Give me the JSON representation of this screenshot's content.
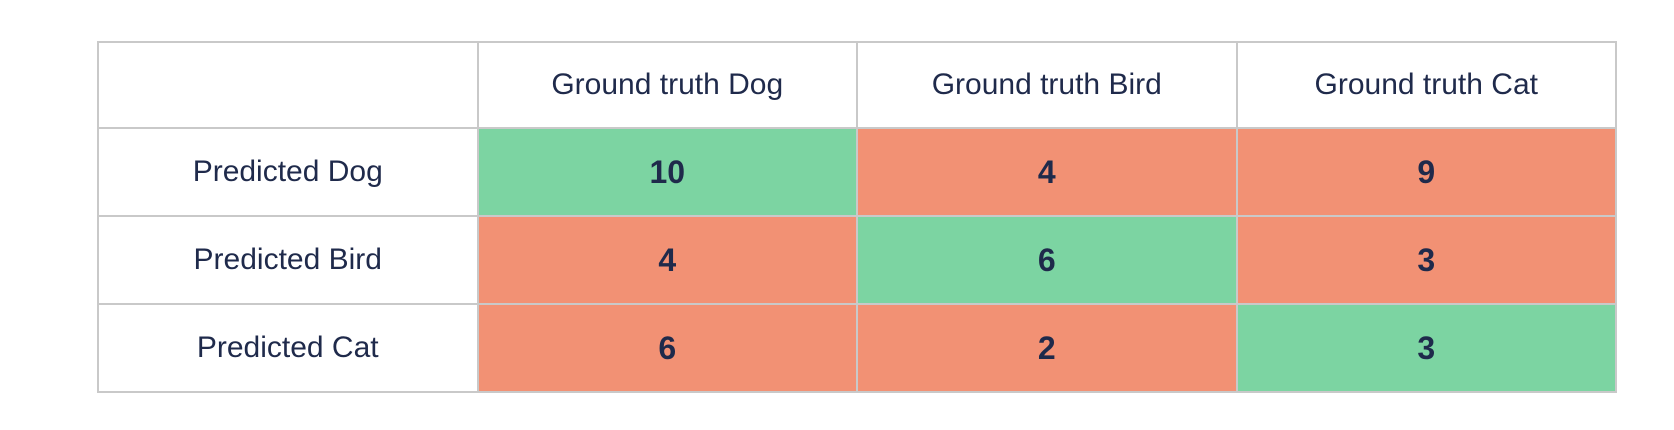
{
  "table": {
    "corner_label": "",
    "column_headers": [
      "Ground truth Dog",
      "Ground truth Bird",
      "Ground truth Cat"
    ],
    "rows": [
      {
        "label": "Predicted Dog",
        "cells": [
          {
            "value": "10",
            "state": "match"
          },
          {
            "value": "4",
            "state": "mismatch"
          },
          {
            "value": "9",
            "state": "mismatch"
          }
        ]
      },
      {
        "label": "Predicted Bird",
        "cells": [
          {
            "value": "4",
            "state": "mismatch"
          },
          {
            "value": "6",
            "state": "match"
          },
          {
            "value": "3",
            "state": "mismatch"
          }
        ]
      },
      {
        "label": "Predicted Cat",
        "cells": [
          {
            "value": "6",
            "state": "mismatch"
          },
          {
            "value": "2",
            "state": "mismatch"
          },
          {
            "value": "3",
            "state": "match"
          }
        ]
      }
    ],
    "colors": {
      "match": "#7CD4A2",
      "mismatch": "#F29174",
      "text": "#1F2A4B",
      "border": "#C9C9C9",
      "background": "#FFFFFF"
    }
  },
  "chart_data": {
    "type": "heatmap",
    "title": "",
    "subtitle": "",
    "rows": [
      "Predicted Dog",
      "Predicted Bird",
      "Predicted Cat"
    ],
    "columns": [
      "Ground truth Dog",
      "Ground truth Bird",
      "Ground truth Cat"
    ],
    "values": [
      [
        10,
        4,
        9
      ],
      [
        4,
        6,
        3
      ],
      [
        6,
        2,
        3
      ]
    ],
    "cell_states": [
      [
        "match",
        "mismatch",
        "mismatch"
      ],
      [
        "mismatch",
        "match",
        "mismatch"
      ],
      [
        "mismatch",
        "mismatch",
        "match"
      ]
    ],
    "legend_position": "none",
    "grid": true
  }
}
